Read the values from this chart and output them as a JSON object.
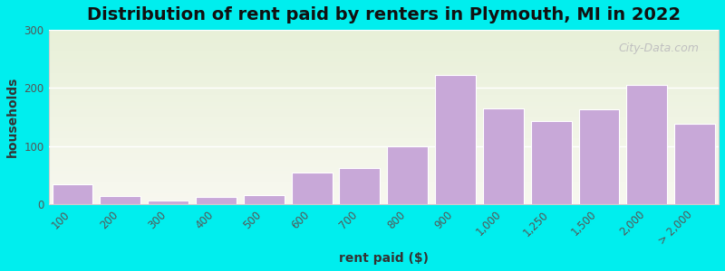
{
  "title": "Distribution of rent paid by renters in Plymouth, MI in 2022",
  "xlabel": "rent paid ($)",
  "ylabel": "households",
  "bar_color": "#c8a8d8",
  "bar_edgecolor": "#ffffff",
  "figure_bg": "#00eeee",
  "plot_bg_top": "#e8f0d8",
  "plot_bg_bottom": "#f8f8f0",
  "categories": [
    "100",
    "200",
    "300",
    "400",
    "500",
    "600",
    "700",
    "800",
    "900",
    "1,000",
    "1,250",
    "1,500",
    "2,000",
    "> 2,000"
  ],
  "values": [
    35,
    14,
    7,
    13,
    16,
    55,
    63,
    100,
    222,
    165,
    143,
    163,
    205,
    138
  ],
  "ylim": [
    0,
    300
  ],
  "yticks": [
    0,
    100,
    200,
    300
  ],
  "title_fontsize": 14,
  "axis_label_fontsize": 10,
  "tick_fontsize": 8.5,
  "watermark_text": "City-Data.com"
}
